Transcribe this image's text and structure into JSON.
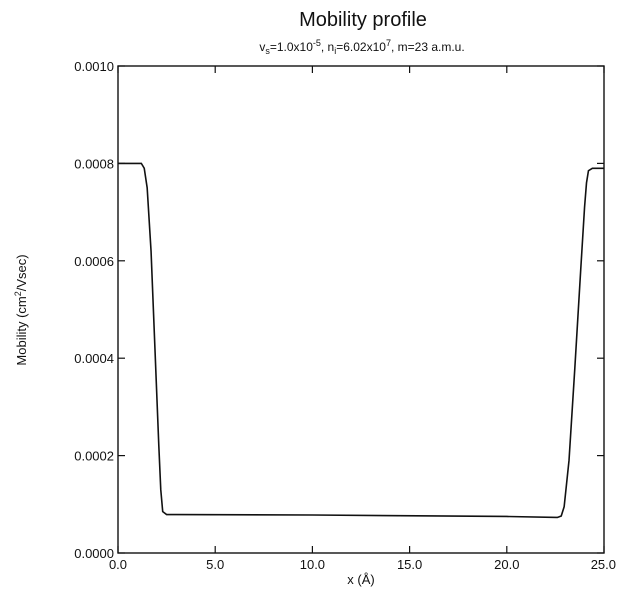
{
  "chart_data": {
    "type": "line",
    "title": "Mobility profile",
    "subtitle": {
      "v_label": "v",
      "v_sub": "s",
      "v_value": "=1.0x10",
      "v_exp": "-5",
      "n_prefix": ", n",
      "n_sub": "i",
      "n_value": "=6.02x10",
      "n_exp": "7",
      "tail": ", m=23 a.m.u."
    },
    "xlabel": "x (Å)",
    "ylabel": {
      "prefix": "Mobility (cm",
      "exp": "2",
      "suffix": "/Vsec)"
    },
    "xlim": [
      0,
      25
    ],
    "ylim": [
      0,
      0.001
    ],
    "xticks": [
      "0.0",
      "5.0",
      "10.0",
      "15.0",
      "20.0",
      "25.0"
    ],
    "yticks": [
      "0.0000",
      "0.0002",
      "0.0004",
      "0.0006",
      "0.0008",
      "0.0010"
    ],
    "grid": false,
    "series": [
      {
        "x": [
          0,
          1.2,
          1.35,
          1.5,
          1.7,
          1.9,
          2.1,
          2.2,
          2.3,
          2.5,
          3.0,
          10.0,
          20.0,
          22.6,
          22.8,
          22.95,
          23.2,
          23.5,
          23.8,
          24.0,
          24.1,
          24.2,
          24.4,
          25.0
        ],
        "y": [
          0.0008,
          0.0008,
          0.00079,
          0.00075,
          0.00062,
          0.00042,
          0.00022,
          0.00013,
          8.5e-05,
          7.9e-05,
          7.9e-05,
          7.8e-05,
          7.5e-05,
          7.3e-05,
          7.6e-05,
          9.5e-05,
          0.00019,
          0.00038,
          0.00058,
          0.00071,
          0.00076,
          0.000785,
          0.00079,
          0.00079
        ]
      }
    ]
  }
}
